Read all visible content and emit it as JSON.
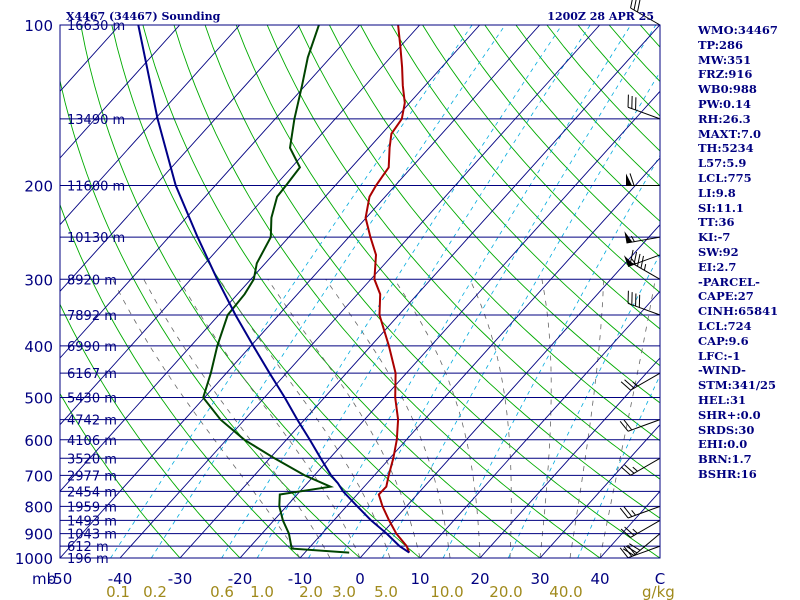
{
  "chart_data": {
    "type": "line",
    "title_left": "X4467 (34467) Sounding",
    "title_right": "1200Z 28 APR 25",
    "pressure_unit_label": "mb",
    "mixing_unit_label": "g/kg",
    "pressure_levels": [
      100,
      200,
      300,
      400,
      500,
      600,
      700,
      800,
      900,
      1000
    ],
    "plim": [
      100,
      1000
    ],
    "temperature_ticks": [
      -50,
      -40,
      -30,
      -20,
      -10,
      0,
      10,
      20,
      30,
      40
    ],
    "xlim": [
      -50,
      50
    ],
    "mixing_ratio_ticks": [
      "0.1",
      "0.2",
      "0.6",
      "1.0",
      "2.0",
      "3.0",
      "5.0",
      "10.0",
      "20.0",
      "40.0"
    ],
    "height_labels": [
      {
        "p": 100,
        "label": "16630 m"
      },
      {
        "p": 150,
        "label": "13490 m"
      },
      {
        "p": 200,
        "label": "11600 m"
      },
      {
        "p": 250,
        "label": "10130 m"
      },
      {
        "p": 300,
        "label": "8920 m"
      },
      {
        "p": 350,
        "label": "7892 m"
      },
      {
        "p": 400,
        "label": "6990 m"
      },
      {
        "p": 450,
        "label": "6167 m"
      },
      {
        "p": 500,
        "label": "5430 m"
      },
      {
        "p": 550,
        "label": "4742 m"
      },
      {
        "p": 600,
        "label": "4106 m"
      },
      {
        "p": 650,
        "label": "3520 m"
      },
      {
        "p": 700,
        "label": "2977 m"
      },
      {
        "p": 750,
        "label": "2454 m"
      },
      {
        "p": 800,
        "label": "1959 m"
      },
      {
        "p": 850,
        "label": "1493 m"
      },
      {
        "p": 900,
        "label": "1043 m"
      },
      {
        "p": 950,
        "label": "612 m"
      },
      {
        "p": 1000,
        "label": "196 m"
      }
    ],
    "series": [
      {
        "name": "Temperature",
        "color": "#aa0000",
        "points": [
          [
            977,
            7.4
          ],
          [
            950,
            6.0
          ],
          [
            900,
            2.4
          ],
          [
            850,
            -0.8
          ],
          [
            800,
            -4.0
          ],
          [
            760,
            -6.4
          ],
          [
            735,
            -6.3
          ],
          [
            700,
            -7.6
          ],
          [
            650,
            -9.4
          ],
          [
            600,
            -11.6
          ],
          [
            550,
            -14.4
          ],
          [
            500,
            -18.2
          ],
          [
            450,
            -21.8
          ],
          [
            400,
            -27.0
          ],
          [
            350,
            -33.2
          ],
          [
            320,
            -36.2
          ],
          [
            300,
            -39.4
          ],
          [
            270,
            -42.8
          ],
          [
            250,
            -46.4
          ],
          [
            230,
            -50.1
          ],
          [
            210,
            -52.6
          ],
          [
            200,
            -53.2
          ],
          [
            185,
            -53.8
          ],
          [
            170,
            -56.6
          ],
          [
            160,
            -58.4
          ],
          [
            150,
            -58.9
          ],
          [
            140,
            -60.8
          ],
          [
            130,
            -63.7
          ],
          [
            120,
            -66.6
          ],
          [
            110,
            -69.9
          ],
          [
            100,
            -73.6
          ]
        ]
      },
      {
        "name": "Dewpoint",
        "color": "#004400",
        "points": [
          [
            977,
            -2.6
          ],
          [
            960,
            -12.8
          ],
          [
            900,
            -15.5
          ],
          [
            850,
            -18.5
          ],
          [
            800,
            -21.2
          ],
          [
            760,
            -22.9
          ],
          [
            735,
            -15.6
          ],
          [
            700,
            -21.6
          ],
          [
            650,
            -29.2
          ],
          [
            600,
            -37.0
          ],
          [
            550,
            -44.0
          ],
          [
            500,
            -50.2
          ],
          [
            450,
            -52.6
          ],
          [
            400,
            -55.6
          ],
          [
            350,
            -58.5
          ],
          [
            320,
            -58.8
          ],
          [
            300,
            -59.5
          ],
          [
            280,
            -61.4
          ],
          [
            250,
            -63.0
          ],
          [
            230,
            -65.8
          ],
          [
            210,
            -68.0
          ],
          [
            200,
            -68.2
          ],
          [
            185,
            -68.6
          ],
          [
            170,
            -73.2
          ],
          [
            150,
            -76.8
          ],
          [
            130,
            -80.5
          ],
          [
            115,
            -83.8
          ],
          [
            100,
            -86.8
          ]
        ]
      },
      {
        "name": "Parcel",
        "color": "#000088",
        "points": [
          [
            977,
            7.4
          ],
          [
            950,
            4.8
          ],
          [
            900,
            0.8
          ],
          [
            850,
            -3.8
          ],
          [
            800,
            -8.2
          ],
          [
            750,
            -12.8
          ],
          [
            724,
            -14.9
          ],
          [
            700,
            -17.2
          ],
          [
            650,
            -21.5
          ],
          [
            600,
            -26.1
          ],
          [
            550,
            -31.2
          ],
          [
            500,
            -36.6
          ],
          [
            450,
            -42.8
          ],
          [
            400,
            -49.6
          ],
          [
            350,
            -57.2
          ],
          [
            300,
            -65.6
          ],
          [
            250,
            -75.2
          ],
          [
            200,
            -86.6
          ],
          [
            150,
            -99.6
          ],
          [
            100,
            -116.9
          ]
        ]
      }
    ],
    "wind_barbs": [
      {
        "p": 100,
        "dir": 300,
        "speed": 30
      },
      {
        "p": 150,
        "dir": 290,
        "speed": 30
      },
      {
        "p": 200,
        "dir": 270,
        "speed": 60
      },
      {
        "p": 250,
        "dir": 260,
        "speed": 55
      },
      {
        "p": 270,
        "dir": 250,
        "speed": 55
      },
      {
        "p": 300,
        "dir": 300,
        "speed": 45
      },
      {
        "p": 350,
        "dir": 290,
        "speed": 40
      },
      {
        "p": 450,
        "dir": 240,
        "speed": 25
      },
      {
        "p": 550,
        "dir": 250,
        "speed": 20
      },
      {
        "p": 650,
        "dir": 240,
        "speed": 25
      },
      {
        "p": 800,
        "dir": 250,
        "speed": 25
      },
      {
        "p": 850,
        "dir": 240,
        "speed": 25
      },
      {
        "p": 900,
        "dir": 230,
        "speed": 30
      },
      {
        "p": 950,
        "dir": 250,
        "speed": 30
      }
    ],
    "colors": {
      "isobar": "#000080",
      "isotherm": "#000080",
      "dry_adiabat": "#00aa00",
      "moist_adiabat": "#666666",
      "mixing_ratio": "#00aadd",
      "temperature": "#aa0000",
      "dewpoint": "#004400",
      "parcel": "#000088",
      "mixing_label": "#a08a1c"
    }
  },
  "indices": [
    "WMO:34467",
    "TP:286",
    "MW:351",
    "FRZ:916",
    "WB0:988",
    "PW:0.14",
    "RH:26.3",
    "MAXT:7.0",
    "TH:5234",
    "L57:5.9",
    "LCL:775",
    "LI:9.8",
    "SI:11.1",
    "TT:36",
    "KI:-7",
    "SW:92",
    "EI:2.7",
    "-PARCEL-",
    "CAPE:27",
    "CINH:65841",
    "LCL:724",
    "CAP:9.6",
    "LFC:-1",
    "-WIND-",
    "STM:341/25",
    "HEL:31",
    "SHR+:0.0",
    "SRDS:30",
    "EHI:0.0",
    "BRN:1.7",
    "BSHR:16"
  ]
}
